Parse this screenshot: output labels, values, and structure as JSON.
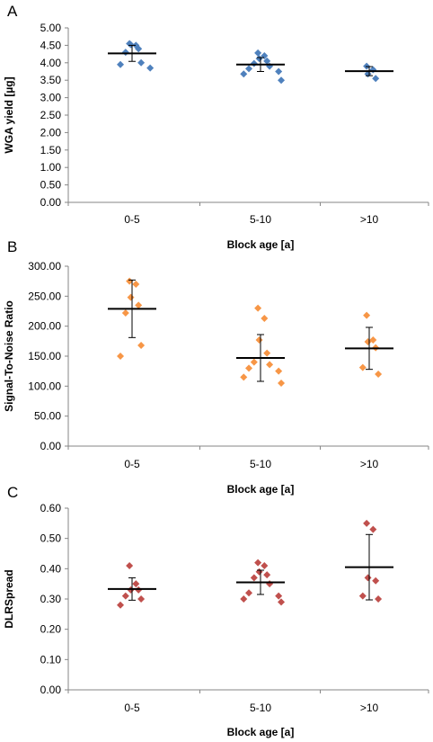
{
  "chart_data": [
    {
      "panel": "A",
      "type": "scatter",
      "categories": [
        "0-5",
        "5-10",
        ">10"
      ],
      "xlabel": "Block age [a]",
      "ylabel": "WGA yield [µg]",
      "ylim": [
        0,
        5
      ],
      "yticks": [
        "0.00",
        "0.50",
        "1.00",
        "1.50",
        "2.00",
        "2.50",
        "3.00",
        "3.50",
        "4.00",
        "4.50",
        "5.00"
      ],
      "marker_color": "#4f81bd",
      "points": [
        [
          4.55,
          4.5,
          4.52,
          4.4,
          4.3,
          4.0,
          3.95,
          3.85
        ],
        [
          4.28,
          4.2,
          4.12,
          4.05,
          3.98,
          3.9,
          3.83,
          3.75,
          3.68,
          3.5
        ],
        [
          3.9,
          3.8,
          3.68,
          3.55
        ]
      ],
      "mean": [
        4.27,
        3.95,
        3.76
      ],
      "sd": [
        0.23,
        0.2,
        0.13
      ]
    },
    {
      "panel": "B",
      "type": "scatter",
      "categories": [
        "0-5",
        "5-10",
        ">10"
      ],
      "xlabel": "Block age [a]",
      "ylabel": "Signal-To-Noise Ratio",
      "ylim": [
        0,
        300
      ],
      "yticks": [
        "0.00",
        "50.00",
        "100.00",
        "150.00",
        "200.00",
        "250.00",
        "300.00"
      ],
      "marker_color": "#f79646",
      "points": [
        [
          275,
          270,
          248,
          235,
          222,
          168,
          150
        ],
        [
          230,
          213,
          177,
          155,
          140,
          136,
          130,
          125,
          115,
          105
        ],
        [
          218,
          177,
          174,
          164,
          131,
          120
        ]
      ],
      "mean": [
        229,
        147,
        163
      ],
      "sd": [
        48,
        39,
        35
      ]
    },
    {
      "panel": "C",
      "type": "scatter",
      "categories": [
        "0-5",
        "5-10",
        ">10"
      ],
      "xlabel": "Block age [a]",
      "ylabel": "DLRSpread",
      "ylim": [
        0,
        0.6
      ],
      "yticks": [
        "0.00",
        "0.10",
        "0.20",
        "0.30",
        "0.40",
        "0.50",
        "0.60"
      ],
      "marker_color": "#c0504d",
      "points": [
        [
          0.41,
          0.35,
          0.33,
          0.33,
          0.31,
          0.3,
          0.28
        ],
        [
          0.42,
          0.41,
          0.39,
          0.38,
          0.37,
          0.35,
          0.32,
          0.31,
          0.3,
          0.29
        ],
        [
          0.55,
          0.53,
          0.37,
          0.36,
          0.31,
          0.3
        ]
      ],
      "mean": [
        0.333,
        0.355,
        0.405
      ],
      "sd": [
        0.037,
        0.04,
        0.108
      ]
    }
  ]
}
